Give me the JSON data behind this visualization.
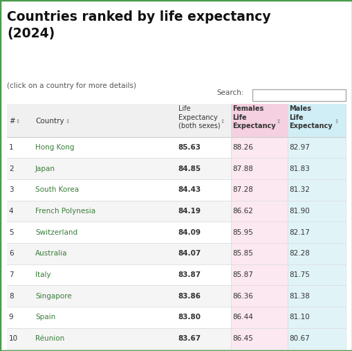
{
  "title": "Countries ranked by life expectancy\n(2024)",
  "subtitle": "(click on a country for more details)",
  "search_label": "Search:",
  "rows": [
    [
      1,
      "Hong Kong",
      85.63,
      88.26,
      82.97
    ],
    [
      2,
      "Japan",
      84.85,
      87.88,
      81.83
    ],
    [
      3,
      "South Korea",
      84.43,
      87.28,
      81.32
    ],
    [
      4,
      "French Polynesia",
      84.19,
      86.62,
      81.9
    ],
    [
      5,
      "Switzerland",
      84.09,
      85.95,
      82.17
    ],
    [
      6,
      "Australia",
      84.07,
      85.85,
      82.28
    ],
    [
      7,
      "Italy",
      83.87,
      85.87,
      81.75
    ],
    [
      8,
      "Singapore",
      83.86,
      86.36,
      81.38
    ],
    [
      9,
      "Spain",
      83.8,
      86.44,
      81.1
    ],
    [
      10,
      "Réunion",
      83.67,
      86.45,
      80.67
    ]
  ],
  "country_color": "#3a7d3a",
  "header_females_bg": "#f5d0e0",
  "header_males_bg": "#d0eef5",
  "row_females_bg": "#fce8f0",
  "row_males_bg": "#e0f4f8",
  "row_bg_odd": "#ffffff",
  "row_bg_even": "#f5f5f5",
  "header_bg": "#f0f0f0",
  "text_color": "#333333",
  "fig_bg": "#ffffff",
  "outer_border_color": "#4a9a4a"
}
